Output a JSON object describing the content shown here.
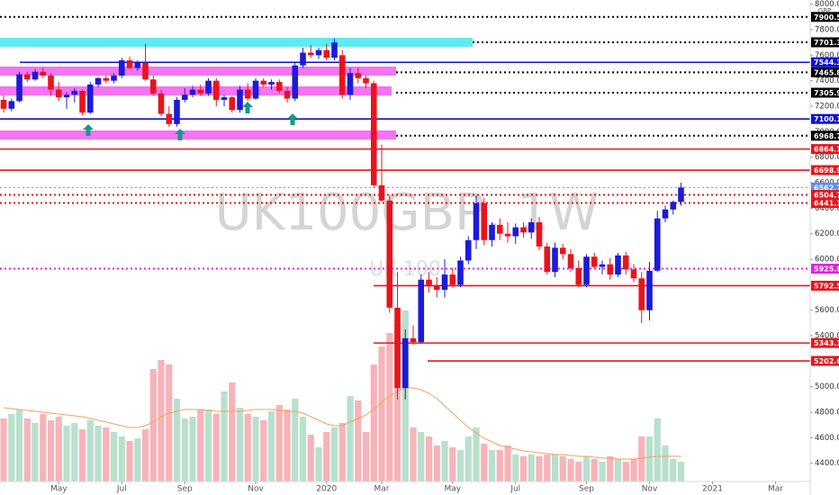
{
  "chart_data": {
    "type": "candlestick",
    "watermark": "UK100GBP, 1W",
    "watermark_subtitle": "UK 100",
    "currency": "GBP",
    "up_color": "#1b1bd8",
    "down_color": "#e8141c",
    "volume_up_color": "#b8e0cd",
    "volume_down_color": "#f7b3b8",
    "ma_color": "#f5a05a",
    "open": [
      7250,
      7180,
      7240,
      7450,
      7410,
      7470,
      7440,
      7330,
      7270,
      7290,
      7320,
      7150,
      7370,
      7420,
      7400,
      7440,
      7560,
      7500,
      7540,
      7410,
      7300,
      7140,
      7060,
      7250,
      7290,
      7330,
      7300,
      7400,
      7250,
      7270,
      7170,
      7330,
      7260,
      7400,
      7370,
      7390,
      7320,
      7260,
      7520,
      7620,
      7600,
      7640,
      7580,
      7600,
      7290,
      7460,
      7420,
      7380,
      6580,
      6460,
      5620,
      4990,
      5380,
      5350,
      5840,
      5790,
      5760,
      5880,
      5800,
      5990,
      6150,
      6440,
      6150,
      6270,
      6200,
      6180,
      6250,
      6210,
      6290,
      6100,
      5900,
      6090,
      6040,
      5930,
      5800,
      6020,
      5940,
      5960,
      5880,
      6030,
      5920,
      5850,
      5600,
      5910,
      6320,
      6390,
      6450
    ],
    "high": [
      7290,
      7260,
      7470,
      7470,
      7490,
      7500,
      7460,
      7390,
      7310,
      7340,
      7330,
      7390,
      7430,
      7440,
      7460,
      7580,
      7590,
      7560,
      7690,
      7440,
      7330,
      7200,
      7270,
      7340,
      7360,
      7370,
      7420,
      7420,
      7290,
      7280,
      7360,
      7380,
      7420,
      7420,
      7410,
      7410,
      7350,
      7540,
      7660,
      7680,
      7660,
      7690,
      7730,
      7640,
      7500,
      7500,
      7440,
      7400,
      6900,
      6500,
      5900,
      5450,
      5480,
      5880,
      5900,
      5860,
      6000,
      5930,
      6020,
      6180,
      6500,
      6480,
      6290,
      6320,
      6290,
      6280,
      6290,
      6320,
      6330,
      6130,
      6130,
      6120,
      6080,
      5990,
      6040,
      6050,
      5990,
      6010,
      6050,
      6060,
      5960,
      5900,
      5980,
      6380,
      6420,
      6460,
      6600
    ],
    "low": [
      7150,
      7160,
      7230,
      7390,
      7400,
      7420,
      7280,
      7240,
      7180,
      7230,
      7130,
      7140,
      7350,
      7380,
      7380,
      7420,
      7490,
      7480,
      7400,
      7280,
      7120,
      7040,
      7040,
      7230,
      7270,
      7280,
      7280,
      7200,
      7200,
      7150,
      7150,
      7240,
      7250,
      7350,
      7330,
      7300,
      7230,
      7240,
      7500,
      7580,
      7570,
      7560,
      7560,
      7260,
      7250,
      7380,
      7340,
      6560,
      6450,
      5580,
      4900,
      4900,
      5330,
      5340,
      5740,
      5700,
      5700,
      5780,
      5780,
      5960,
      6080,
      6110,
      6100,
      6150,
      6130,
      6120,
      6170,
      6160,
      6070,
      5880,
      5860,
      6000,
      5900,
      5780,
      5780,
      5920,
      5880,
      5840,
      5860,
      5880,
      5820,
      5500,
      5520,
      5900,
      6290,
      6350,
      6420
    ],
    "close": [
      7180,
      7240,
      7450,
      7410,
      7470,
      7440,
      7330,
      7270,
      7290,
      7320,
      7150,
      7370,
      7420,
      7400,
      7440,
      7560,
      7500,
      7540,
      7410,
      7300,
      7140,
      7060,
      7250,
      7290,
      7330,
      7300,
      7400,
      7250,
      7270,
      7170,
      7330,
      7260,
      7400,
      7370,
      7390,
      7320,
      7260,
      7520,
      7620,
      7600,
      7640,
      7580,
      7700,
      7290,
      7460,
      7420,
      7380,
      6580,
      6460,
      5620,
      4990,
      5380,
      5350,
      5840,
      5790,
      5760,
      5880,
      5800,
      5990,
      6150,
      6440,
      6150,
      6270,
      6200,
      6180,
      6250,
      6210,
      6290,
      6100,
      5900,
      6090,
      6040,
      5930,
      5800,
      6020,
      5940,
      5960,
      5880,
      6030,
      5920,
      5850,
      5600,
      5910,
      6320,
      6390,
      6450,
      6562.7
    ],
    "volume": [
      70,
      75,
      80,
      70,
      65,
      75,
      68,
      72,
      62,
      65,
      58,
      68,
      62,
      60,
      55,
      50,
      45,
      48,
      58,
      125,
      135,
      130,
      92,
      70,
      72,
      80,
      80,
      75,
      100,
      110,
      82,
      75,
      72,
      68,
      78,
      85,
      80,
      92,
      72,
      52,
      38,
      55,
      60,
      65,
      95,
      90,
      55,
      130,
      150,
      165,
      175,
      190,
      60,
      55,
      50,
      40,
      45,
      38,
      35,
      50,
      60,
      42,
      35,
      35,
      40,
      30,
      28,
      30,
      28,
      30,
      30,
      28,
      25,
      22,
      28,
      25,
      22,
      28,
      25,
      22,
      25,
      50,
      50,
      70,
      40,
      25,
      22
    ],
    "volume_ma": [
      82,
      81,
      80,
      79,
      78,
      77,
      76,
      75,
      74,
      73,
      72,
      70,
      68,
      66,
      64,
      62,
      60,
      60,
      62,
      66,
      72,
      76,
      78,
      80,
      80,
      80,
      79,
      78,
      78,
      78,
      78,
      79,
      80,
      80,
      80,
      79,
      78,
      78,
      76,
      72,
      68,
      64,
      62,
      62,
      66,
      70,
      74,
      80,
      88,
      95,
      100,
      104,
      104,
      102,
      98,
      92,
      84,
      76,
      68,
      60,
      54,
      48,
      44,
      40,
      38,
      36,
      34,
      33,
      32,
      31,
      30,
      30,
      29,
      28,
      28,
      27,
      26,
      26,
      25,
      25,
      25,
      26,
      27,
      28,
      28,
      28,
      28
    ],
    "xlim": [
      -0.46,
      102.4
    ],
    "xticks": [
      {
        "value": 7,
        "label": "May"
      },
      {
        "value": 15,
        "label": "Jul"
      },
      {
        "value": 23,
        "label": "Sep"
      },
      {
        "value": 32,
        "label": "Nov"
      },
      {
        "value": 41,
        "label": "2020"
      },
      {
        "value": 48,
        "label": "Mar"
      },
      {
        "value": 57,
        "label": "May"
      },
      {
        "value": 65,
        "label": "Jul"
      },
      {
        "value": 74,
        "label": "Sep"
      },
      {
        "value": 82,
        "label": "Nov"
      },
      {
        "value": 90,
        "label": "2021"
      },
      {
        "value": 98,
        "label": "Mar"
      }
    ],
    "ylim": [
      4257,
      8033
    ],
    "yticks": [
      {
        "value": 4400,
        "label": "4400.0"
      },
      {
        "value": 4600,
        "label": "4600.0"
      },
      {
        "value": 4800,
        "label": "4800.0"
      },
      {
        "value": 5000,
        "label": "5000.0"
      },
      {
        "value": 5200,
        "label": "5200.0"
      },
      {
        "value": 5400,
        "label": "5400.0"
      },
      {
        "value": 5600,
        "label": "5600.0"
      },
      {
        "value": 5800,
        "label": "5800.0"
      },
      {
        "value": 6000,
        "label": "6000.0"
      },
      {
        "value": 6200,
        "label": "6200.0"
      },
      {
        "value": 6400,
        "label": "6400.0"
      },
      {
        "value": 6600,
        "label": "6600.0"
      },
      {
        "value": 6800,
        "label": "6800.0"
      },
      {
        "value": 7000,
        "label": "7000.0"
      },
      {
        "value": 7200,
        "label": "7200.0"
      },
      {
        "value": 7400,
        "label": "7400.0"
      },
      {
        "value": 7600,
        "label": "7600.0"
      },
      {
        "value": 7800,
        "label": "7800.0"
      },
      {
        "value": 8000,
        "label": "8000.0"
      }
    ],
    "zones": [
      {
        "from": 7665,
        "to": 7737,
        "color": "#44e6ee"
      },
      {
        "from": 7440,
        "to": 7511,
        "color": "#f25cf0"
      },
      {
        "from": 7285,
        "to": 7356,
        "color": "#f25cf0"
      },
      {
        "from": 6939,
        "to": 7010,
        "color": "#f25cf0"
      }
    ],
    "levels": [
      {
        "value": 7900.5,
        "color": "#000000",
        "style": "dotted"
      },
      {
        "value": 7701.3,
        "color": "#000000",
        "style": "dotted"
      },
      {
        "value": 7544.3,
        "color": "#1010d0",
        "style": "solid"
      },
      {
        "value": 7465.8,
        "color": "#000000",
        "style": "dotted"
      },
      {
        "value": 7305.9,
        "color": "#000000",
        "style": "dotted"
      },
      {
        "value": 7100.1,
        "color": "#1010d0",
        "style": "solid"
      },
      {
        "value": 6968.7,
        "color": "#000000",
        "style": "dotted"
      },
      {
        "value": 6864.1,
        "color": "#e8141c",
        "style": "solid"
      },
      {
        "value": 6698.9,
        "color": "#e8141c",
        "style": "solid"
      },
      {
        "value": 6562.7,
        "color": "#5b8ff0",
        "style": "dotted"
      },
      {
        "value": 6504.7,
        "color": "#e8141c",
        "style": "dotted"
      },
      {
        "value": 6441.1,
        "color": "#e8141c",
        "style": "dotted"
      },
      {
        "value": 5925.8,
        "color": "#e81ce8",
        "style": "dotted"
      },
      {
        "value": 5792.5,
        "color": "#e8141c",
        "style": "solid"
      },
      {
        "value": 5343.1,
        "color": "#e8141c",
        "style": "solid"
      },
      {
        "value": 5202.6,
        "color": "#e8141c",
        "style": "solid"
      }
    ]
  }
}
